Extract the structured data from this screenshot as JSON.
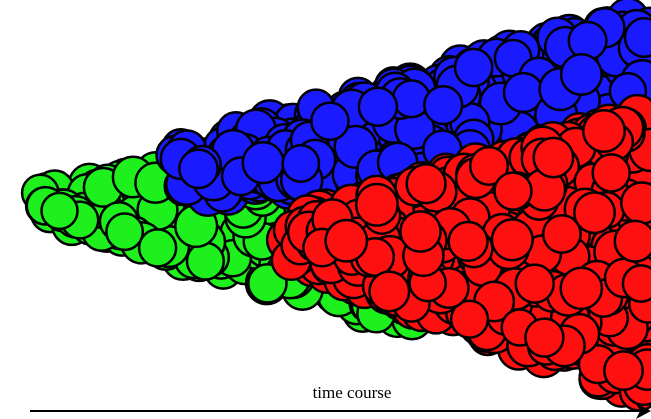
{
  "axis": {
    "label": "time course"
  }
}
